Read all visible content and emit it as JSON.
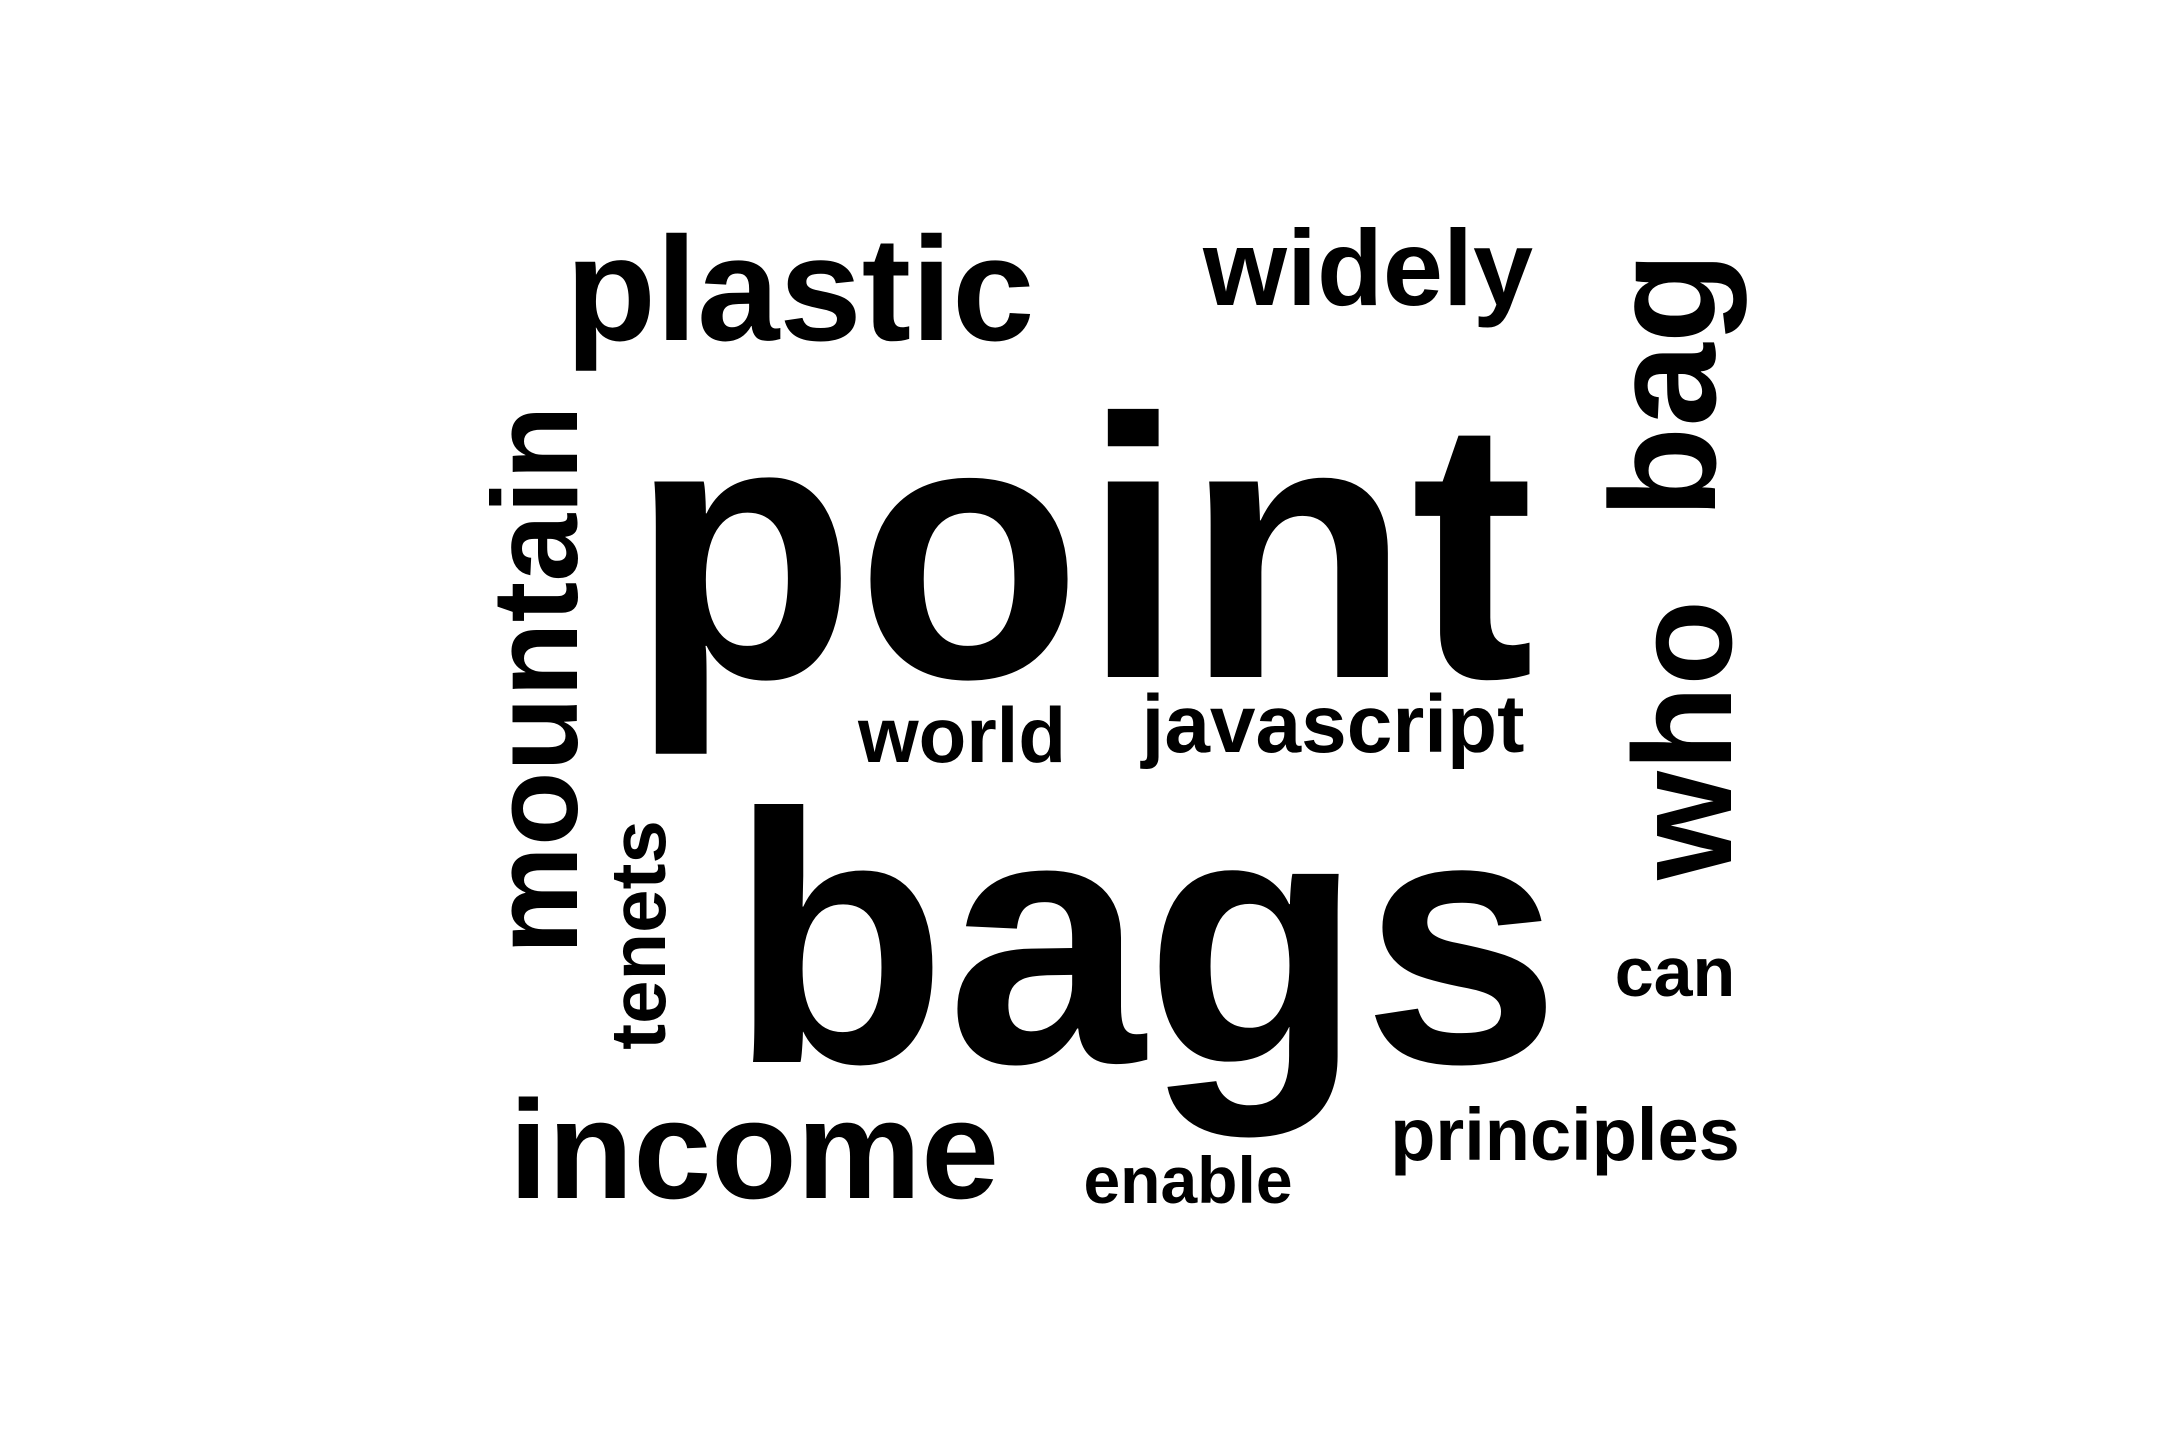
{
  "words": {
    "plastic": "plastic",
    "widely": "widely",
    "point": "point",
    "bag": "bag",
    "mountain": "mountain",
    "world": "world",
    "javascript": "javascript",
    "who": "who",
    "bags": "bags",
    "tenets": "tenets",
    "can": "can",
    "income": "income",
    "enable": "enable",
    "principles": "principles"
  },
  "colors": {
    "text": "#000000",
    "background": "#ffffff"
  }
}
